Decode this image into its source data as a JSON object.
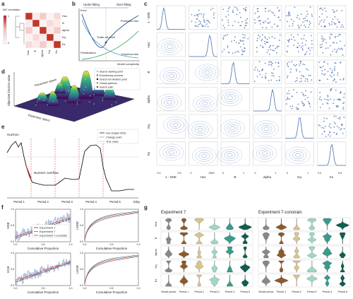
{
  "panels": {
    "a": {
      "label": "a",
      "colorbar_title": "MIC correlation",
      "colorbar_ticks": [
        "1",
        "0"
      ],
      "rows": [
        "Huz",
        "B",
        "alpha",
        "Kq",
        "Ks"
      ],
      "columns": [
        "Huz",
        "B",
        "alpha",
        "Kq",
        "Ks"
      ]
    },
    "b": {
      "label": "b",
      "under": "Under-fitting",
      "over": "Over-fitting",
      "y_axis": "Error",
      "x_axis": "Model complexity",
      "prediction": "Prediction risk",
      "tradeoff": "Trade-off point",
      "penalization": "Penalization",
      "empirical": "Empirical risk"
    },
    "c": {
      "label": "c",
      "variables": [
        "1 - NSE",
        "Huz",
        "B",
        "alpha",
        "Kq",
        "Ks"
      ],
      "ticks": [
        [
          "0.0",
          "0.5"
        ],
        [
          "0",
          "2000"
        ],
        [
          "0",
          "1"
        ],
        [
          "0",
          "1"
        ],
        [
          "0",
          "1"
        ],
        [
          "0.0",
          "0.5"
        ]
      ]
    },
    "d": {
      "label": "d",
      "z_axis": "Objective function value",
      "x_axis": "Parameter space",
      "y_axis": "Parameter space",
      "legend": [
        "Search starting point",
        "Evolutionary process",
        "Search termination point",
        "Global optimum",
        "Search path"
      ]
    },
    "e": {
      "label": "e",
      "y_axis": "Huz/mm",
      "legend": [
        "Huz (Upper limit)",
        "Change point",
        "True value"
      ],
      "annotation": "Numeric overflow",
      "periods": [
        "Period 1",
        "Period 2",
        "Period 3",
        "Period 4",
        "Period 5"
      ],
      "x_axis": "t/day"
    },
    "f": {
      "label": "f",
      "y_axes": [
        "NSE",
        "LNSE",
        "KGE",
        "LKGE"
      ],
      "x_axis": "Cumulative Proportion",
      "ticks": [
        "0.0",
        "0.5",
        "1.0"
      ],
      "legend": [
        "Experiment 1",
        "Experiment 7",
        "Experiment 7-constrain"
      ]
    },
    "g": {
      "label": "g",
      "titles": [
        "Experiment 7",
        "Experiment 7-constrain"
      ],
      "rows": [
        "Huz",
        "B",
        "alpha",
        "Kq",
        "Ks"
      ],
      "columns": [
        "Whole period",
        "Period 1",
        "Period 2",
        "Period 3",
        "Period 4",
        "Period 5"
      ]
    }
  }
}
